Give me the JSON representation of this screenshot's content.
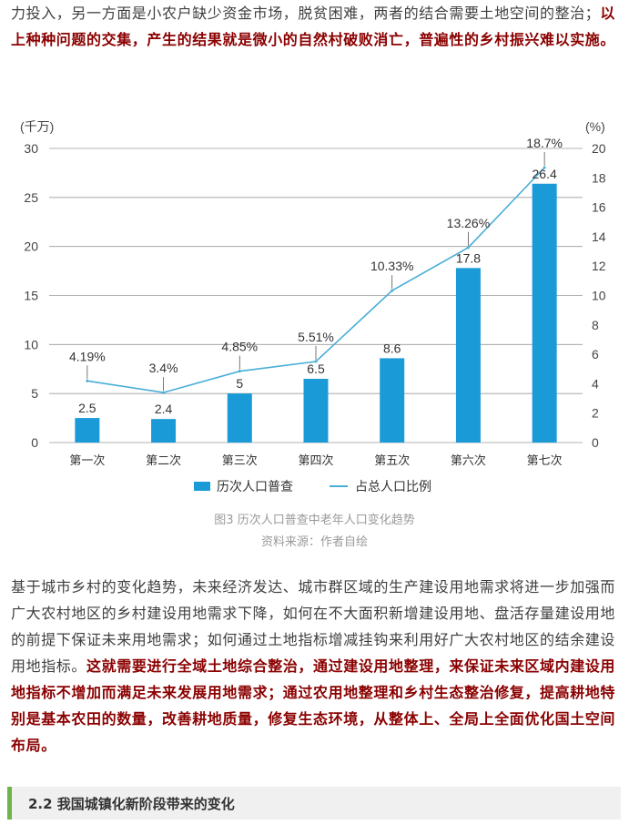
{
  "paragraph1": {
    "normal": "力投入，另一方面是小农户缺少资金市场，脱贫困难，两者的结合需要土地空间的整治；",
    "emphasis": "以上种种问题的交集，产生的结果就是微小的自然村破败消亡，普遍性的乡村振兴难以实施。"
  },
  "chart_data": {
    "type": "bar",
    "categories": [
      "第一次",
      "第二次",
      "第三次",
      "第四次",
      "第五次",
      "第六次",
      "第七次"
    ],
    "series": [
      {
        "name": "历次人口普查",
        "type": "bar",
        "axis": "left",
        "values": [
          2.5,
          2.4,
          5,
          6.5,
          8.6,
          17.8,
          26.4
        ],
        "labels": [
          "2.5",
          "2.4",
          "5",
          "6.5",
          "8.6",
          "17.8",
          "26.4"
        ]
      },
      {
        "name": "占总人口比例",
        "type": "line",
        "axis": "right",
        "values": [
          4.19,
          3.4,
          4.85,
          5.51,
          10.33,
          13.26,
          18.7
        ],
        "labels": [
          "4.19%",
          "3.4%",
          "4.85%",
          "5.51%",
          "10.33%",
          "13.26%",
          "18.7%"
        ]
      }
    ],
    "left_unit": "(千万)",
    "right_unit": "(%)",
    "ylim_left": [
      0,
      30
    ],
    "yticks_left": [
      "0",
      "5",
      "10",
      "15",
      "20",
      "25",
      "30"
    ],
    "ylim_right": [
      0,
      20
    ],
    "yticks_right": [
      "0",
      "2",
      "4",
      "6",
      "8",
      "10",
      "12",
      "14",
      "16",
      "18",
      "20"
    ],
    "grid": true,
    "legend_position": "bottom",
    "colors": {
      "bar": "#1a9bd7",
      "line": "#48aed8"
    }
  },
  "captions": {
    "figure": "图3 历次人口普查中老年人口变化趋势",
    "source": "资料来源：作者自绘"
  },
  "paragraph2": {
    "normal": "基于城市乡村的变化趋势，未来经济发达、城市群区域的生产建设用地需求将进一步加强而广大农村地区的乡村建设用地需求下降，如何在不大面积新增建设用地、盘活存量建设用地的前提下保证未来用地需求；如何通过土地指标增减挂钩来利用好广大农村地区的结余建设用地指标。",
    "emphasis": "这就需要进行全域土地综合整治，通过建设用地整理，来保证未来区域内建设用地指标不增加而满足未来发展用地需求；通过农用地整理和乡村生态整治修复，提高耕地特别是基本农田的数量，改善耕地质量，修复生态环境，从整体上、全局上全面优化国土空间布局。"
  },
  "section_heading": "2.2  我国城镇化新阶段带来的变化"
}
